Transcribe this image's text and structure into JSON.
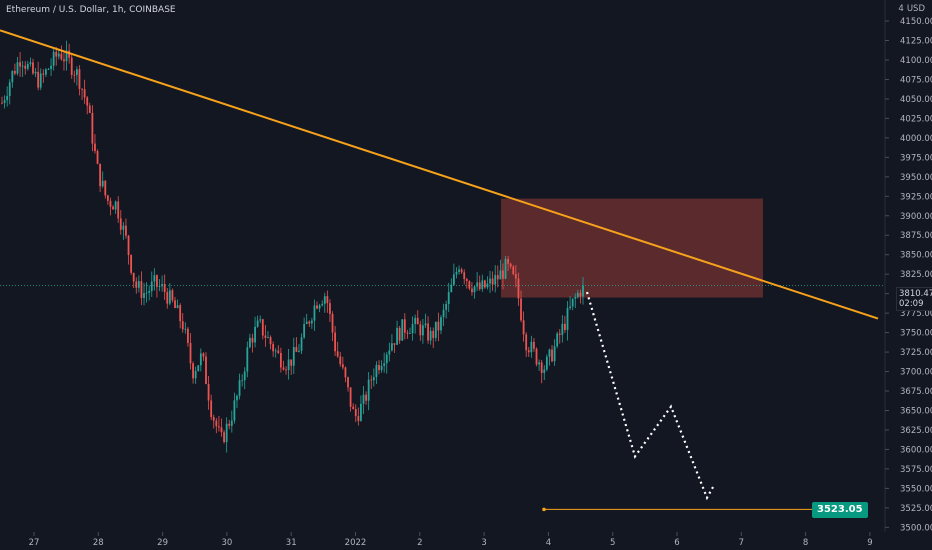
{
  "chart_data": {
    "type": "candlestick",
    "title": "Ethereum / U.S. Dollar, 1h, COINBASE",
    "currency": "USD",
    "currency_prefix": "4",
    "y_ticks": [
      3500,
      3525,
      3550,
      3575,
      3600,
      3625,
      3650,
      3675,
      3700,
      3725,
      3750,
      3775,
      3800,
      3825,
      3850,
      3875,
      3900,
      3925,
      3950,
      3975,
      4000,
      4025,
      4050,
      4075,
      4100,
      4125,
      4150
    ],
    "y_tick_labels": [
      "3500.00",
      "3525.00",
      "3550.00",
      "3575.00",
      "3600.00",
      "3625.00",
      "3650.00",
      "3675.00",
      "3700.00",
      "3725.00",
      "3750.00",
      "3775.00",
      "3800.00",
      "3825.00",
      "3850.00",
      "3875.00",
      "3900.00",
      "3925.00",
      "3950.00",
      "3975.00",
      "4000.00",
      "4025.00",
      "4050.00",
      "4075.00",
      "4100.00",
      "4125.00",
      "4150.00"
    ],
    "x_tick_labels": [
      "27",
      "28",
      "29",
      "30",
      "31",
      "2022",
      "2",
      "3",
      "4",
      "5",
      "6",
      "7",
      "8",
      "9"
    ],
    "ylim": [
      3494,
      4177
    ],
    "current_price": 3810.47,
    "countdown": "02:09",
    "target_price": 3523.05,
    "resistance_zone": {
      "top": 3922,
      "bottom": 3795
    },
    "trendline": {
      "start": 4138,
      "end": 3768
    },
    "projection_path": [
      3802,
      3591,
      3655,
      3538,
      3554
    ],
    "price_path": [
      4045,
      4080,
      4105,
      4085,
      4072,
      4092,
      4110,
      4098,
      4080,
      4040,
      3960,
      3920,
      3915,
      3870,
      3810,
      3800,
      3812,
      3805,
      3785,
      3760,
      3700,
      3720,
      3650,
      3610,
      3640,
      3680,
      3740,
      3760,
      3740,
      3720,
      3710,
      3725,
      3760,
      3790,
      3800,
      3730,
      3690,
      3640,
      3660,
      3700,
      3720,
      3740,
      3755,
      3760,
      3755,
      3745,
      3760,
      3800,
      3840,
      3815,
      3805,
      3810,
      3820,
      3835,
      3810,
      3740,
      3720,
      3705,
      3730,
      3760,
      3790,
      3810.47
    ],
    "colors": {
      "up": "#26a69a",
      "down": "#ef5350",
      "trendline": "#f7a21b",
      "zone": "#6b2e30",
      "target_line": "#f7a21b",
      "target_badge": "#089981",
      "background": "#131722"
    }
  }
}
